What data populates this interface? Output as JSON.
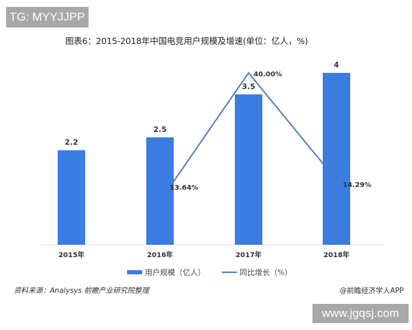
{
  "watermarks": {
    "top_left": "TG: MYYJJPP",
    "bottom_right": "www.jgqsj.com"
  },
  "chart_data": {
    "type": "bar",
    "title": "图表6：2015-2018年中国电竞用户规模及增速(单位：亿人，%)",
    "categories": [
      "2015年",
      "2016年",
      "2017年",
      "2018年"
    ],
    "series": [
      {
        "name": "用户规模（亿人）",
        "type": "bar",
        "values": [
          2.2,
          2.5,
          3.5,
          4
        ],
        "labels": [
          "2.2",
          "2.5",
          "3.5",
          "4"
        ],
        "color": "#3b7de0"
      },
      {
        "name": "同比增长（%）",
        "type": "line",
        "values": [
          null,
          13.64,
          40.0,
          14.29
        ],
        "labels": [
          "",
          "13.64%",
          "40.00%",
          "14.29%"
        ],
        "color": "#4f7ac0"
      }
    ],
    "xlabel": "",
    "ylabel": "",
    "grid": false,
    "legend_position": "bottom"
  },
  "legend": {
    "bar_label": "用户规模（亿人）",
    "line_label": "同比增长（%）"
  },
  "footer": {
    "source": "资料来源：Analysys 前瞻产业研究院整理",
    "credit": "@前瞻经济学人APP"
  }
}
